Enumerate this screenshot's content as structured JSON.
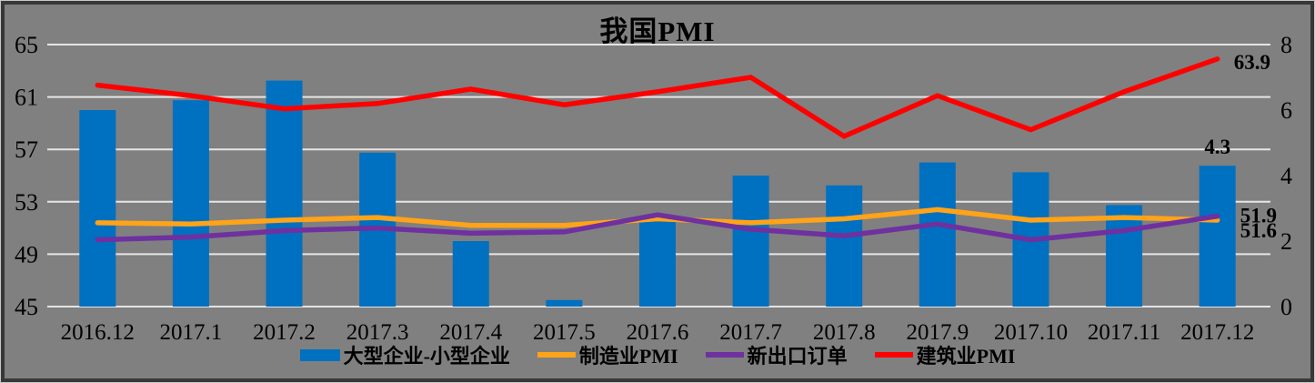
{
  "title": "我国PMI",
  "colors": {
    "background": "#808080",
    "gridline": "#E5E5E5",
    "border_dark": "#383838",
    "border_light": "#C8C8C8",
    "text": "#000000",
    "bar_blue": "#0070C0",
    "orange": "#FFA319",
    "purple": "#6F30A0",
    "red": "#FF0000"
  },
  "chart_data": {
    "type": "combo",
    "title": "我国PMI",
    "grid": true,
    "legend_position": "bottom",
    "categories": [
      "2016.12",
      "2017.1",
      "2017.2",
      "2017.3",
      "2017.4",
      "2017.5",
      "2017.6",
      "2017.7",
      "2017.8",
      "2017.9",
      "2017.10",
      "2017.11",
      "2017.12"
    ],
    "left_axis": {
      "ticks": [
        45,
        49,
        53,
        57,
        61,
        65
      ],
      "range": [
        45,
        65
      ]
    },
    "right_axis": {
      "ticks": [
        0,
        2,
        4,
        6,
        8
      ],
      "range": [
        0,
        8
      ]
    },
    "series": [
      {
        "name": "大型企业-小型企业",
        "type": "bar",
        "axis": "right",
        "color": "#0070C0",
        "values": [
          6.0,
          6.3,
          6.9,
          4.7,
          2.0,
          0.2,
          2.6,
          4.0,
          3.7,
          4.4,
          4.1,
          3.1,
          4.3
        ],
        "end_label": "4.3"
      },
      {
        "name": "制造业PMI",
        "type": "line",
        "axis": "left",
        "color": "#FFA319",
        "values": [
          51.4,
          51.3,
          51.6,
          51.8,
          51.2,
          51.2,
          51.7,
          51.4,
          51.7,
          52.4,
          51.6,
          51.8,
          51.6
        ],
        "end_label": "51.6"
      },
      {
        "name": "新出口订单",
        "type": "line",
        "axis": "left",
        "color": "#6F30A0",
        "values": [
          50.1,
          50.3,
          50.8,
          51.0,
          50.6,
          50.7,
          52.0,
          50.9,
          50.4,
          51.3,
          50.1,
          50.8,
          51.9
        ],
        "end_label": "51.9"
      },
      {
        "name": "建筑业PMI",
        "type": "line",
        "axis": "left",
        "color": "#FF0000",
        "values": [
          61.9,
          61.1,
          60.1,
          60.5,
          61.6,
          60.4,
          61.4,
          62.5,
          58.0,
          61.1,
          58.5,
          61.4,
          63.9
        ],
        "end_label": "63.9"
      }
    ]
  },
  "legend": {
    "items": [
      {
        "label": "大型企业-小型企业"
      },
      {
        "label": "制造业PMI"
      },
      {
        "label": "新出口订单"
      },
      {
        "label": "建筑业PMI"
      }
    ]
  }
}
